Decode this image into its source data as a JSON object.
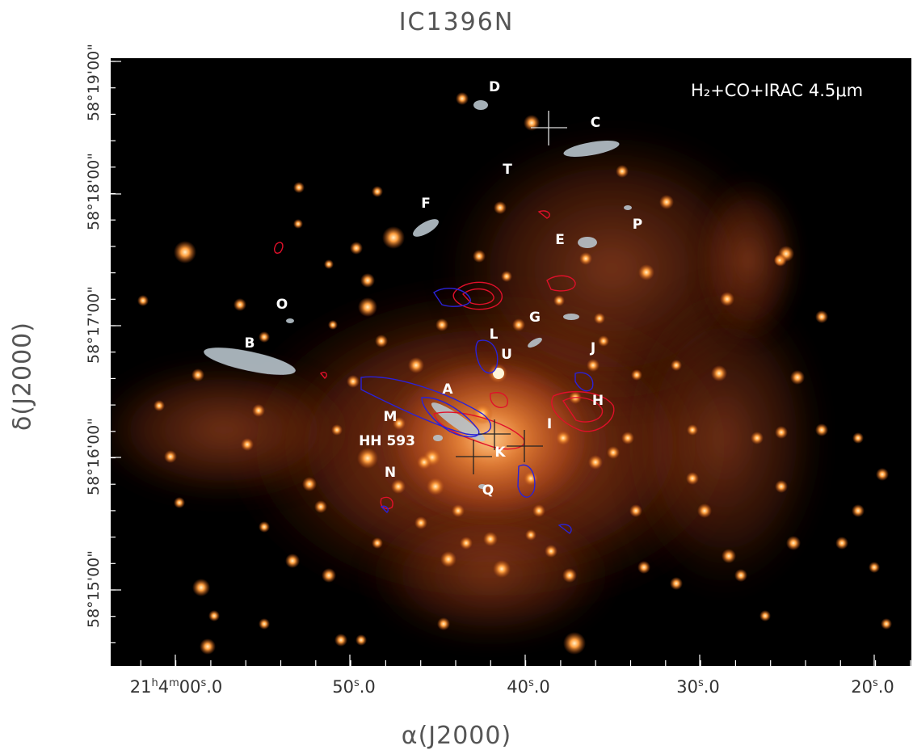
{
  "figure": {
    "title": "IC1396N",
    "legend": "H₂+CO+IRAC 4.5μm",
    "x_axis_label": "α(J2000)",
    "y_axis_label": "δ(J2000)",
    "x_ticks": [
      "21h4m00s.0",
      "50s.0",
      "40s.0",
      "30s.0",
      "20s.0"
    ],
    "y_ticks": [
      "58°19'00\"",
      "58°18'00\"",
      "58°17'00\"",
      "58°16'00\"",
      "58°15'00\""
    ]
  },
  "x_tick_text": {
    "t0": "21h4m00s0",
    "t1": "50s0",
    "t2": "40s0",
    "t3": "30s0",
    "t4": "20s0"
  },
  "object_labels": {
    "D": "D",
    "C": "C",
    "T": "T",
    "F": "F",
    "P": "P",
    "E": "E",
    "O": "O",
    "G": "G",
    "B": "B",
    "L": "L",
    "U": "U",
    "J": "J",
    "A": "A",
    "H": "H",
    "M": "M",
    "I": "I",
    "HH593": "HH 593",
    "K": "K",
    "N": "N",
    "Q": "Q"
  },
  "colors": {
    "background": "#000000",
    "nebula": "#c8531e",
    "stars": "#ffb060",
    "h2_knots": "#b8c4cc",
    "co_red": "#e0102a",
    "co_blue": "#2a22d8"
  }
}
